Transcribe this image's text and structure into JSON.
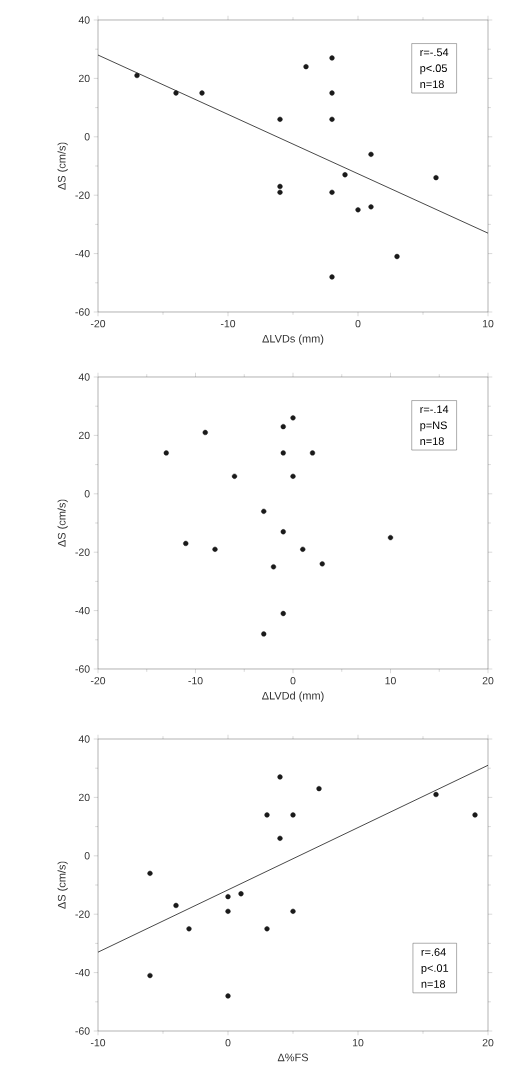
{
  "chart_data": [
    {
      "type": "scatter",
      "xlabel": "ΔLVDs (mm)",
      "ylabel": "ΔS (cm/s)",
      "xlim": [
        -20,
        10
      ],
      "ylim": [
        -60,
        40
      ],
      "xticks": [
        -20,
        -10,
        0,
        10
      ],
      "yticks": [
        -60,
        -40,
        -20,
        0,
        20,
        40
      ],
      "marker": "circle",
      "annotations": [
        "r=-.54",
        "p<.05",
        "n=18"
      ],
      "series": [
        {
          "color": "#1a1a1a",
          "x": [
            -17,
            -14,
            -12,
            -6,
            -6,
            -6,
            -4,
            -2,
            -2,
            -2,
            -2,
            -2,
            -1,
            0,
            1,
            1,
            3,
            6
          ],
          "values": [
            21,
            15,
            15,
            6,
            -17,
            -19,
            24,
            27,
            15,
            6,
            -19,
            -48,
            -13,
            -25,
            -6,
            -24,
            -41,
            -14
          ]
        },
        {
          "type": "line",
          "color": "#1a1a1a",
          "marker": "none",
          "x": [
            -20,
            10
          ],
          "values": [
            28,
            -33
          ]
        }
      ]
    },
    {
      "type": "scatter",
      "xlabel": "ΔLVDd (mm)",
      "ylabel": "ΔS (cm/s)",
      "xlim": [
        -20,
        20
      ],
      "ylim": [
        -60,
        40
      ],
      "xticks": [
        -20,
        -10,
        0,
        10,
        20
      ],
      "yticks": [
        -60,
        -40,
        -20,
        0,
        20,
        40
      ],
      "marker": "circle",
      "annotations": [
        "r=-.14",
        "p=NS",
        "n=18"
      ],
      "series": [
        {
          "color": "#1a1a1a",
          "x": [
            -13,
            -9,
            -6,
            -11,
            -8,
            -3,
            -3,
            -2,
            -1,
            -1,
            -1,
            -1,
            0,
            0,
            1,
            2,
            3,
            10
          ],
          "values": [
            14,
            21,
            6,
            -17,
            -19,
            -6,
            -48,
            -25,
            23,
            14,
            -13,
            -41,
            26,
            6,
            -19,
            14,
            -24,
            -15
          ]
        }
      ]
    },
    {
      "type": "scatter",
      "xlabel": "Δ%FS",
      "ylabel": "ΔS (cm/s)",
      "xlim": [
        -10,
        20
      ],
      "ylim": [
        -60,
        40
      ],
      "xticks": [
        -10,
        0,
        10,
        20
      ],
      "yticks": [
        -60,
        -40,
        -20,
        0,
        20,
        40
      ],
      "marker": "circle",
      "annotations": [
        "r=.64",
        "p<.01",
        "n=18"
      ],
      "series": [
        {
          "color": "#1a1a1a",
          "x": [
            -6,
            -6,
            -4,
            -3,
            0,
            0,
            0,
            1,
            3,
            3,
            4,
            4,
            5,
            5,
            7,
            16,
            19
          ],
          "values": [
            -6,
            -41,
            -17,
            -25,
            -14,
            -19,
            -48,
            -13,
            14,
            -25,
            27,
            6,
            14,
            -19,
            23,
            21,
            14
          ]
        },
        {
          "type": "line",
          "color": "#1a1a1a",
          "marker": "none",
          "x": [
            -10,
            20
          ],
          "values": [
            -33,
            31
          ]
        }
      ]
    }
  ]
}
